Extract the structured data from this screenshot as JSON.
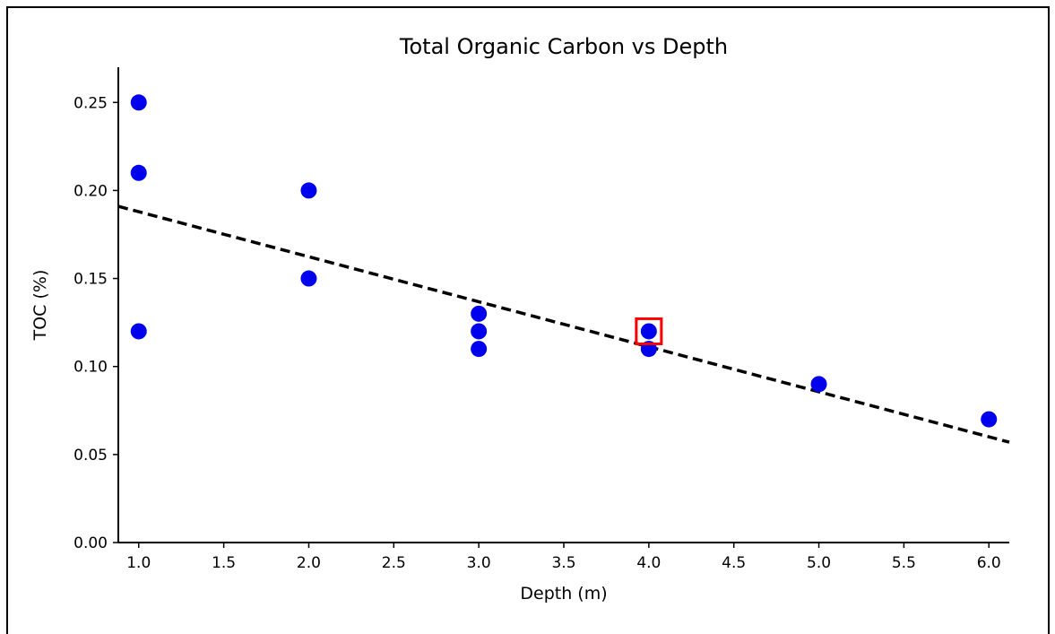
{
  "chart_data": {
    "type": "scatter",
    "title": "Total Organic Carbon vs Depth",
    "xlabel": "Depth (m)",
    "ylabel": "TOC (%)",
    "xlim": [
      0.88,
      6.12
    ],
    "ylim": [
      0.0,
      0.27
    ],
    "xticks": [
      "1.0",
      "1.5",
      "2.0",
      "2.5",
      "3.0",
      "3.5",
      "4.0",
      "4.5",
      "5.0",
      "5.5",
      "6.0"
    ],
    "yticks": [
      "0.00",
      "0.05",
      "0.10",
      "0.15",
      "0.20",
      "0.25"
    ],
    "grid": false,
    "series": [
      {
        "marker_color": "#0000ee",
        "points": [
          {
            "x": 1.0,
            "y": 0.25
          },
          {
            "x": 1.0,
            "y": 0.21
          },
          {
            "x": 1.0,
            "y": 0.12
          },
          {
            "x": 2.0,
            "y": 0.2
          },
          {
            "x": 2.0,
            "y": 0.15
          },
          {
            "x": 3.0,
            "y": 0.13
          },
          {
            "x": 3.0,
            "y": 0.12
          },
          {
            "x": 3.0,
            "y": 0.11
          },
          {
            "x": 4.0,
            "y": 0.12
          },
          {
            "x": 4.0,
            "y": 0.11
          },
          {
            "x": 5.0,
            "y": 0.09
          },
          {
            "x": 6.0,
            "y": 0.07
          }
        ]
      }
    ],
    "trendline": {
      "style": "dashed",
      "color": "#000000",
      "points": [
        {
          "x": 0.88,
          "y": 0.191
        },
        {
          "x": 6.12,
          "y": 0.057
        }
      ]
    },
    "highlight": {
      "x": 4.0,
      "y": 0.12,
      "color": "#ff0000"
    }
  }
}
